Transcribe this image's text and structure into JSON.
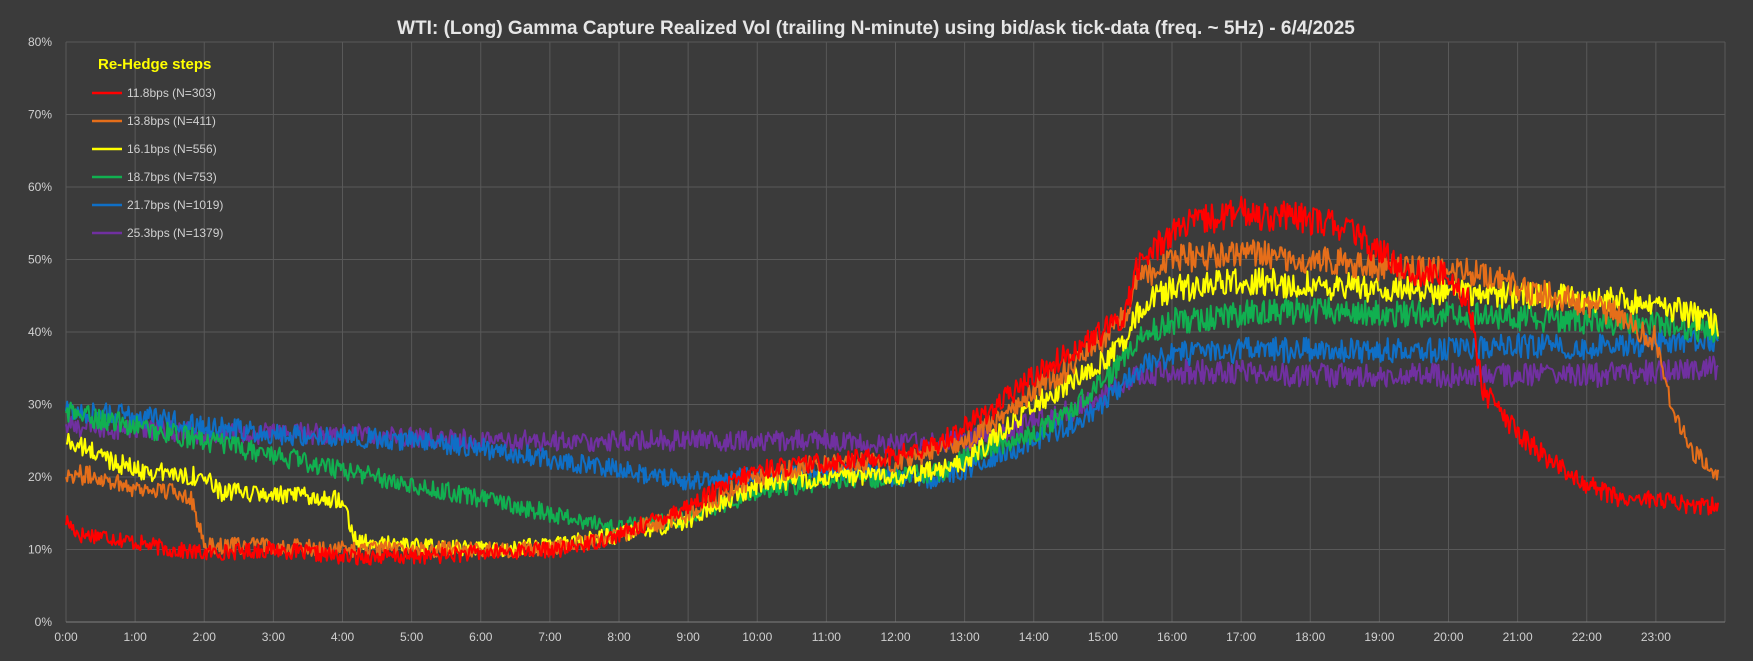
{
  "chart_data": {
    "type": "line",
    "title": "WTI: (Long) Gamma Capture Realized Vol (trailing N-minute) using bid/ask tick-data (freq. ~ 5Hz) - 6/4/2025",
    "xlabel": "",
    "ylabel": "",
    "x_unit": "hours",
    "xlim": [
      0,
      24
    ],
    "ylim": [
      0,
      80
    ],
    "x_ticks": [
      "0:00",
      "1:00",
      "2:00",
      "3:00",
      "4:00",
      "5:00",
      "6:00",
      "7:00",
      "8:00",
      "9:00",
      "10:00",
      "11:00",
      "12:00",
      "13:00",
      "14:00",
      "15:00",
      "16:00",
      "17:00",
      "18:00",
      "19:00",
      "20:00",
      "21:00",
      "22:00",
      "23:00"
    ],
    "y_ticks": [
      "0%",
      "10%",
      "20%",
      "30%",
      "40%",
      "50%",
      "60%",
      "70%",
      "80%"
    ],
    "grid": true,
    "legend": {
      "title": "Re-Hedge steps",
      "placement": "top-left"
    },
    "series": [
      {
        "name": "11.8bps  (N=303)",
        "color": "#ff0000",
        "noise": 0.9,
        "x": [
          0,
          0.2,
          0.5,
          1,
          1.5,
          2,
          3,
          4,
          5,
          6,
          7,
          7.2,
          8,
          9,
          10,
          11,
          12,
          12.5,
          13,
          13.5,
          14,
          14.5,
          15,
          15.3,
          15.5,
          16,
          16.5,
          17,
          17.5,
          18,
          18.5,
          19,
          19.5,
          20,
          20.3,
          20.5,
          21,
          21.5,
          22,
          22.5,
          23,
          23.5,
          23.9
        ],
        "y": [
          14,
          12,
          12,
          11,
          10,
          9.5,
          10,
          9,
          9,
          9.5,
          10,
          10,
          12,
          16,
          21,
          22,
          23,
          24,
          27,
          30,
          34,
          37,
          40,
          42,
          49,
          54,
          55.5,
          56.5,
          56,
          55.5,
          54.5,
          51,
          48,
          48,
          44,
          32,
          26,
          22,
          19,
          17,
          17,
          16,
          16
        ]
      },
      {
        "name": "13.8bps  (N=411)",
        "color": "#e56e1a",
        "noise": 0.9,
        "x": [
          0,
          0.5,
          1,
          1.5,
          1.8,
          2,
          3,
          4,
          5,
          6,
          7,
          8,
          9,
          10,
          11,
          12,
          13,
          13.5,
          14,
          14.5,
          15,
          15.3,
          15.5,
          16,
          17,
          18,
          19,
          19.5,
          20,
          20.5,
          21,
          21.5,
          22,
          22.5,
          23,
          23.2,
          23.5,
          23.9
        ],
        "y": [
          20.5,
          20,
          18.5,
          18,
          17.5,
          10.5,
          10.5,
          10,
          10,
          10,
          10,
          12,
          15,
          20,
          22,
          22,
          25,
          28,
          32,
          35,
          39,
          42,
          47,
          50,
          51,
          50,
          49,
          48.5,
          48.5,
          48,
          46,
          45,
          44,
          42,
          39,
          31,
          24,
          20
        ]
      },
      {
        "name": "16.1bps  (N=556)",
        "color": "#ffff00",
        "noise": 0.9,
        "x": [
          0,
          0.5,
          1,
          1.5,
          2,
          2.2,
          3,
          4,
          4.2,
          5,
          6,
          7,
          8,
          9,
          10,
          11,
          12,
          13,
          13.5,
          14,
          14.5,
          15,
          15.3,
          15.5,
          16,
          17,
          18,
          19,
          20,
          21,
          22,
          23,
          23.9
        ],
        "y": [
          25,
          23,
          21,
          20.5,
          20,
          18,
          17.5,
          17,
          11,
          10.5,
          10,
          10.5,
          12,
          14,
          19,
          20,
          20,
          22,
          26,
          30,
          33,
          36,
          38,
          43,
          46,
          47,
          46.5,
          46,
          45.5,
          45,
          44.5,
          44,
          41
        ]
      },
      {
        "name": "18.7bps  (N=753)",
        "color": "#11b050",
        "noise": 0.9,
        "x": [
          0,
          1,
          2,
          3,
          4,
          5,
          6,
          7,
          7.5,
          8,
          9,
          10,
          11,
          12,
          12.8,
          13,
          14,
          14.5,
          15,
          15.3,
          15.5,
          16,
          17,
          18,
          19,
          20,
          21,
          22,
          23,
          23.9
        ],
        "y": [
          29,
          27,
          25,
          23,
          21,
          19,
          17,
          15,
          14,
          13,
          14.5,
          18,
          19.5,
          20,
          21,
          23,
          26,
          29,
          33,
          36,
          39,
          41.5,
          42.5,
          43,
          42.5,
          42.5,
          42,
          41.5,
          41,
          40
        ]
      },
      {
        "name": "21.7bps  (N=1019)",
        "color": "#0f6fc6",
        "noise": 0.9,
        "x": [
          0,
          1,
          2,
          3,
          4,
          5,
          6,
          7,
          8,
          9,
          10,
          11,
          12,
          12.5,
          13,
          13.5,
          14,
          14.5,
          15,
          15.3,
          15.5,
          16,
          17,
          18,
          19,
          20,
          21,
          22,
          23,
          23.9
        ],
        "y": [
          29,
          28.5,
          27,
          26,
          25.5,
          25,
          24,
          22.5,
          21,
          19.5,
          20,
          21,
          20,
          19.5,
          21,
          23,
          25,
          27,
          30,
          33,
          35,
          37,
          37.5,
          37.5,
          37.5,
          37.5,
          38,
          38,
          38.5,
          39
        ]
      },
      {
        "name": "25.3bps  (N=1379)",
        "color": "#7030a0",
        "noise": 0.9,
        "x": [
          0,
          1,
          2,
          3,
          4,
          5,
          6,
          7,
          8,
          9,
          10,
          11,
          12,
          13,
          13.5,
          14,
          14.5,
          15,
          15.3,
          15.5,
          16,
          17,
          18,
          19,
          20,
          21,
          22,
          23,
          23.9
        ],
        "y": [
          27,
          26.5,
          26,
          26,
          26,
          25.5,
          25,
          25,
          25,
          25,
          25,
          25,
          24.5,
          25,
          26,
          27.5,
          29,
          31,
          33,
          34,
          34.5,
          34.5,
          34,
          34,
          34,
          34,
          34,
          34.5,
          35
        ]
      }
    ]
  }
}
